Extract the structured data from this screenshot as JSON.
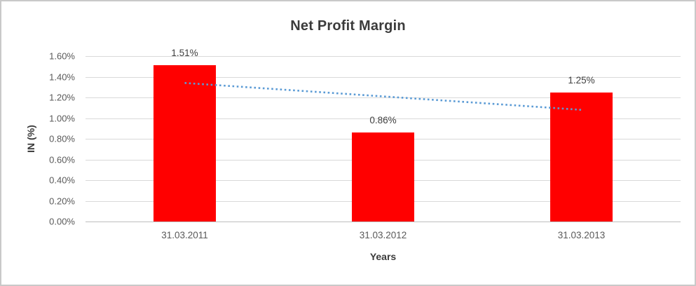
{
  "frame": {
    "background_color": "#FFFFFF",
    "border_color": "#C9C9C9"
  },
  "chart_data": {
    "type": "bar",
    "title": "Net Profit Margin",
    "xlabel": "Years",
    "ylabel": "IN (%)",
    "categories": [
      "31.03.2011",
      "31.03.2012",
      "31.03.2013"
    ],
    "values": [
      1.51,
      0.86,
      1.25
    ],
    "value_labels": [
      "1.51%",
      "0.86%",
      "1.25%"
    ],
    "ylim": [
      0,
      1.6
    ],
    "ytick_step": 0.2,
    "ytick_labels": [
      "0.00%",
      "0.20%",
      "0.40%",
      "0.60%",
      "0.80%",
      "1.00%",
      "1.20%",
      "1.40%",
      "1.60%"
    ],
    "grid": true,
    "legend": "none",
    "bar_color": "#FF0000",
    "gridline_color": "#D9D9D9",
    "axis_line_color": "#BFBFBF",
    "text_color_dark": "#3B3B3B",
    "text_color_tick": "#595959",
    "trendline": {
      "type": "linear",
      "style": "dotted",
      "color": "#5B9BD5",
      "start_value": 1.34,
      "end_value": 1.08
    }
  }
}
